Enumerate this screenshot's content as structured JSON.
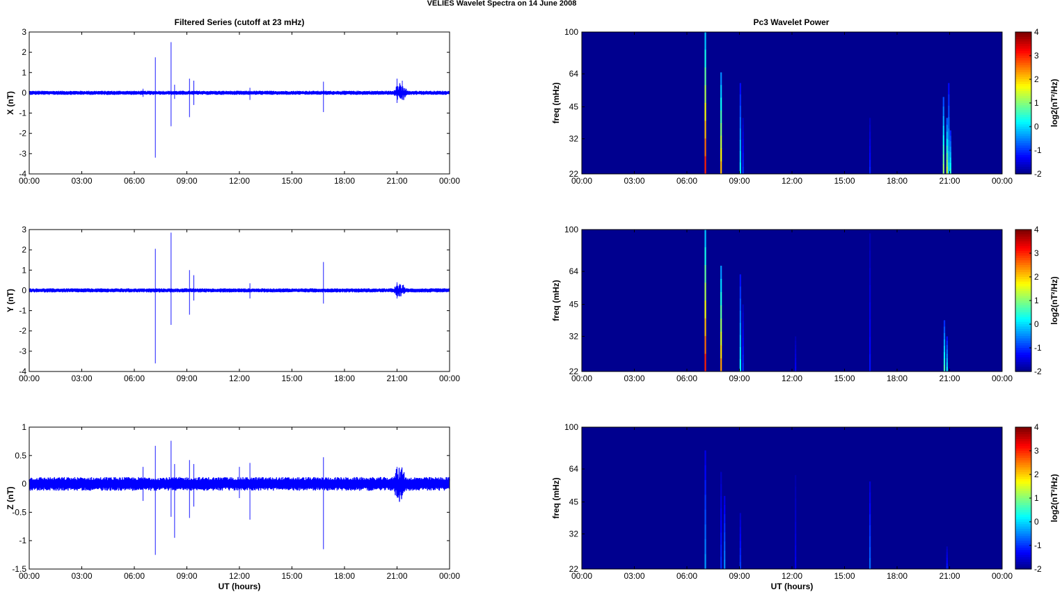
{
  "figure": {
    "suptitle": "VELIES Wavelet Spectra on 14 June      2008",
    "left_title": "Filtered Series (cutoff at 23 mHz)",
    "right_title": "Pc3 Wavelet Power",
    "trace_color": "#0000ff",
    "background_color": "#00008f"
  },
  "chart_data": [
    {
      "type": "line",
      "ylabel": "X (nT)",
      "ylim": [
        -4,
        3
      ],
      "yticks": [
        "3",
        "2",
        "1",
        "0",
        "-1",
        "-2",
        "-3",
        "-4"
      ],
      "xticks": [
        "00:00",
        "03:00",
        "06:00",
        "09:00",
        "12:00",
        "15:00",
        "18:00",
        "21:00",
        "00:00"
      ],
      "xlabel": "",
      "xlim_hours": [
        0,
        24
      ],
      "noise_amplitude": 0.1,
      "spikes": [
        {
          "t": 6.5,
          "min": -0.2,
          "max": 0.2
        },
        {
          "t": 7.2,
          "min": -3.2,
          "max": 1.75
        },
        {
          "t": 8.1,
          "min": -1.65,
          "max": 2.5
        },
        {
          "t": 8.3,
          "min": -0.3,
          "max": 0.4
        },
        {
          "t": 9.15,
          "min": -1.2,
          "max": 0.7
        },
        {
          "t": 9.4,
          "min": -0.6,
          "max": 0.6
        },
        {
          "t": 12.6,
          "min": -0.35,
          "max": 0.25
        },
        {
          "t": 16.8,
          "min": -0.95,
          "max": 0.55
        },
        {
          "t": 21.0,
          "min": -0.5,
          "max": 0.7
        },
        {
          "t": 21.3,
          "min": -0.3,
          "max": 0.6
        }
      ],
      "bursts": [
        {
          "start": 20.8,
          "end": 21.6,
          "amp": 0.4
        }
      ]
    },
    {
      "type": "line",
      "ylabel": "Y (nT)",
      "ylim": [
        -4,
        3
      ],
      "yticks": [
        "3",
        "2",
        "1",
        "0",
        "-1",
        "-2",
        "-3",
        "-4"
      ],
      "xticks": [
        "00:00",
        "03:00",
        "06:00",
        "09:00",
        "12:00",
        "15:00",
        "18:00",
        "21:00",
        "00:00"
      ],
      "xlabel": "",
      "xlim_hours": [
        0,
        24
      ],
      "noise_amplitude": 0.1,
      "spikes": [
        {
          "t": 7.2,
          "min": -3.6,
          "max": 2.05
        },
        {
          "t": 8.1,
          "min": -1.7,
          "max": 2.85
        },
        {
          "t": 9.15,
          "min": -1.2,
          "max": 1.0
        },
        {
          "t": 9.4,
          "min": -0.5,
          "max": 0.75
        },
        {
          "t": 12.6,
          "min": -0.4,
          "max": 0.35
        },
        {
          "t": 16.8,
          "min": -0.65,
          "max": 1.4
        },
        {
          "t": 21.0,
          "min": -0.4,
          "max": 0.4
        }
      ],
      "bursts": [
        {
          "start": 20.8,
          "end": 21.5,
          "amp": 0.3
        }
      ]
    },
    {
      "type": "line",
      "ylabel": "Z (nT)",
      "ylim": [
        -1.5,
        1
      ],
      "yticks": [
        "1",
        "0.5",
        "0",
        "-0.5",
        "-1",
        "-1.5"
      ],
      "xticks": [
        "00:00",
        "03:00",
        "06:00",
        "09:00",
        "12:00",
        "15:00",
        "18:00",
        "21:00",
        "00:00"
      ],
      "xlabel": "UT (hours)",
      "xlim_hours": [
        0,
        24
      ],
      "noise_amplitude": 0.12,
      "spikes": [
        {
          "t": 6.5,
          "min": -0.3,
          "max": 0.3
        },
        {
          "t": 7.2,
          "min": -1.25,
          "max": 0.67
        },
        {
          "t": 8.1,
          "min": -0.58,
          "max": 0.76
        },
        {
          "t": 8.3,
          "min": -0.95,
          "max": 0.35
        },
        {
          "t": 9.15,
          "min": -0.6,
          "max": 0.42
        },
        {
          "t": 9.4,
          "min": -0.4,
          "max": 0.35
        },
        {
          "t": 12.0,
          "min": -0.25,
          "max": 0.3
        },
        {
          "t": 12.6,
          "min": -0.63,
          "max": 0.37
        },
        {
          "t": 16.8,
          "min": -1.15,
          "max": 0.47
        },
        {
          "t": 21.0,
          "min": -0.2,
          "max": 0.3
        }
      ],
      "bursts": [
        {
          "start": 20.8,
          "end": 21.5,
          "amp": 0.25
        }
      ]
    },
    {
      "type": "heatmap",
      "ylabel": "freq (mHz)",
      "yticks": [
        "100",
        "64",
        "45",
        "32",
        "22"
      ],
      "xticks": [
        "00:00",
        "03:00",
        "06:00",
        "09:00",
        "12:00",
        "15:00",
        "18:00",
        "21:00",
        "00:00"
      ],
      "xlabel": "",
      "colorbar_ticks": [
        "4",
        "3",
        "2",
        "1",
        "0",
        "-1",
        "-2"
      ],
      "colorbar_label": "log2(nT²/Hz)",
      "clim": [
        -2,
        4
      ],
      "baseline": -2,
      "streaks": [
        {
          "t": 7.05,
          "fmax": 100,
          "power": 3.5
        },
        {
          "t": 7.95,
          "fmax": 65,
          "power": 2.5
        },
        {
          "t": 9.05,
          "fmax": 58,
          "power": 0.3
        },
        {
          "t": 9.2,
          "fmax": 40,
          "power": -0.9
        },
        {
          "t": 16.45,
          "fmax": 40,
          "power": -1.0
        },
        {
          "t": 20.65,
          "fmax": 50,
          "power": 1.4
        },
        {
          "t": 20.85,
          "fmax": 40,
          "power": 1.7
        },
        {
          "t": 20.95,
          "fmax": 58,
          "power": 0.3
        },
        {
          "t": 21.05,
          "fmax": 35,
          "power": 0.7
        }
      ]
    },
    {
      "type": "heatmap",
      "ylabel": "freq (mHz)",
      "yticks": [
        "100",
        "64",
        "45",
        "32",
        "22"
      ],
      "xticks": [
        "00:00",
        "03:00",
        "06:00",
        "09:00",
        "12:00",
        "15:00",
        "18:00",
        "21:00",
        "00:00"
      ],
      "xlabel": "",
      "colorbar_ticks": [
        "4",
        "3",
        "2",
        "1",
        "0",
        "-1",
        "-2"
      ],
      "colorbar_label": "log2(nT²/Hz)",
      "clim": [
        -2,
        4
      ],
      "baseline": -2,
      "streaks": [
        {
          "t": 7.05,
          "fmax": 100,
          "power": 3.5
        },
        {
          "t": 7.95,
          "fmax": 68,
          "power": 2.7
        },
        {
          "t": 9.05,
          "fmax": 62,
          "power": 0.4
        },
        {
          "t": 9.2,
          "fmax": 45,
          "power": -0.9
        },
        {
          "t": 12.2,
          "fmax": 32,
          "power": -1.2
        },
        {
          "t": 16.45,
          "fmax": 96,
          "power": -1.1
        },
        {
          "t": 20.7,
          "fmax": 38,
          "power": 0.9
        },
        {
          "t": 20.85,
          "fmax": 32,
          "power": 0.4
        }
      ]
    },
    {
      "type": "heatmap",
      "ylabel": "freq (mHz)",
      "yticks": [
        "100",
        "64",
        "45",
        "32",
        "22"
      ],
      "xticks": [
        "00:00",
        "03:00",
        "06:00",
        "09:00",
        "12:00",
        "15:00",
        "18:00",
        "21:00",
        "00:00"
      ],
      "xlabel": "UT (hours)",
      "colorbar_ticks": [
        "4",
        "3",
        "2",
        "1",
        "0",
        "-1",
        "-2"
      ],
      "colorbar_label": "log2(nT²/Hz)",
      "clim": [
        -2,
        4
      ],
      "baseline": -2,
      "streaks": [
        {
          "t": 7.05,
          "fmax": 78,
          "power": -0.2
        },
        {
          "t": 7.95,
          "fmax": 62,
          "power": -0.9
        },
        {
          "t": 8.15,
          "fmax": 48,
          "power": -0.3
        },
        {
          "t": 9.05,
          "fmax": 40,
          "power": -0.8
        },
        {
          "t": 12.2,
          "fmax": 60,
          "power": -1.3
        },
        {
          "t": 16.45,
          "fmax": 56,
          "power": -0.5
        },
        {
          "t": 20.85,
          "fmax": 28,
          "power": -1.0
        }
      ]
    }
  ]
}
